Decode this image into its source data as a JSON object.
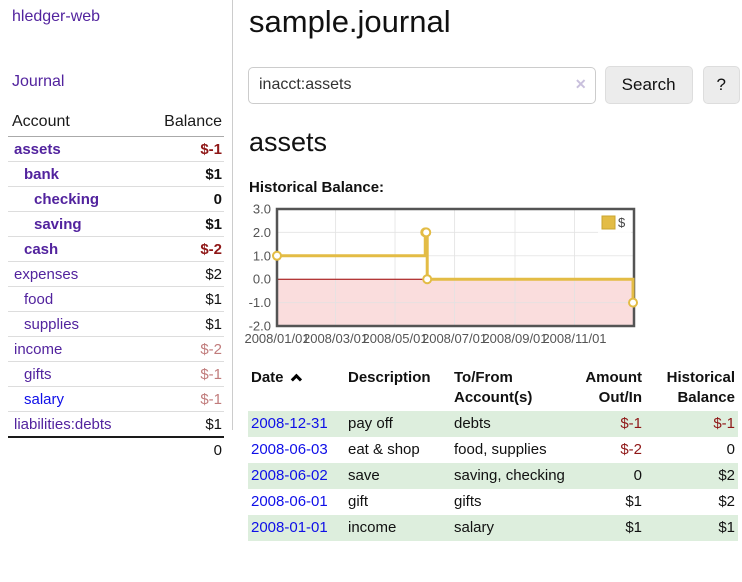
{
  "colors": {
    "purple": "#52239e",
    "blue": "#0f0fe8",
    "negative": "#8f1717",
    "negative_faded": "#c17c7c",
    "stripe_green": "#ddeedd",
    "chart_gold": "#e3bc45",
    "chart_pink": "#fadddd",
    "chart_border": "#545454",
    "chart_zero_line": "#a00000",
    "chart_grid": "#e2e2e2"
  },
  "app": {
    "title": "hledger-web"
  },
  "nav": {
    "journal_label": "Journal"
  },
  "sidebar": {
    "columns": {
      "account": "Account",
      "balance": "Balance"
    },
    "accounts": [
      {
        "name": "assets",
        "depth": 1,
        "bold": true,
        "name_style": "purple",
        "balance": "$-1",
        "balance_style": "neg"
      },
      {
        "name": "bank",
        "depth": 2,
        "bold": true,
        "name_style": "purple",
        "balance": "$1",
        "balance_style": "pos"
      },
      {
        "name": "checking",
        "depth": 3,
        "bold": true,
        "name_style": "purple",
        "balance": "0",
        "balance_style": "pos"
      },
      {
        "name": "saving",
        "depth": 3,
        "bold": true,
        "name_style": "purple",
        "balance": "$1",
        "balance_style": "pos"
      },
      {
        "name": "cash",
        "depth": 2,
        "bold": true,
        "name_style": "purple",
        "balance": "$-2",
        "balance_style": "neg"
      },
      {
        "name": "expenses",
        "depth": 1,
        "bold": false,
        "name_style": "purple",
        "balance": "$2",
        "balance_style": "pos"
      },
      {
        "name": "food",
        "depth": 2,
        "bold": false,
        "name_style": "purple",
        "balance": "$1",
        "balance_style": "pos"
      },
      {
        "name": "supplies",
        "depth": 2,
        "bold": false,
        "name_style": "purple",
        "balance": "$1",
        "balance_style": "pos"
      },
      {
        "name": "income",
        "depth": 1,
        "bold": false,
        "name_style": "purple",
        "balance": "$-2",
        "balance_style": "neg-faded"
      },
      {
        "name": "gifts",
        "depth": 2,
        "bold": false,
        "name_style": "purple",
        "balance": "$-1",
        "balance_style": "neg-faded"
      },
      {
        "name": "salary",
        "depth": 2,
        "bold": false,
        "name_style": "blue",
        "balance": "$-1",
        "balance_style": "neg-faded"
      },
      {
        "name": "liabilities:debts",
        "depth": 1,
        "bold": false,
        "name_style": "purple",
        "balance": "$1",
        "balance_style": "pos"
      }
    ],
    "total": "0"
  },
  "header": {
    "title": "sample.journal"
  },
  "search": {
    "value": "inacct:assets",
    "clear_icon": "✕",
    "search_button": "Search",
    "help_button": "?"
  },
  "content": {
    "account_heading": "assets",
    "chart_label": "Historical Balance:"
  },
  "chart_data": {
    "type": "line",
    "step": true,
    "title": "Historical Balance:",
    "legend_position": "top-right",
    "grid": true,
    "ylim": [
      -2,
      3
    ],
    "y_ticks": [
      3.0,
      2.0,
      1.0,
      0.0,
      -1.0,
      -2.0
    ],
    "xlim_days": [
      0,
      366
    ],
    "x_ticks": [
      {
        "day": 0,
        "label": "2008/01/01"
      },
      {
        "day": 60,
        "label": "2008/03/01"
      },
      {
        "day": 121,
        "label": "2008/05/01"
      },
      {
        "day": 182,
        "label": "2008/07/01"
      },
      {
        "day": 244,
        "label": "2008/09/01"
      },
      {
        "day": 305,
        "label": "2008/11/01"
      }
    ],
    "series": [
      {
        "name": "$",
        "dates": [
          "2008-01-01",
          "2008-06-01",
          "2008-06-02",
          "2008-06-03",
          "2008-12-31"
        ],
        "x_days": [
          0,
          152,
          153,
          154,
          365
        ],
        "values": [
          1,
          2,
          2,
          0,
          -1
        ]
      }
    ]
  },
  "register": {
    "headers": [
      "Date",
      "Description",
      "To/From Account(s)",
      "Amount Out/In",
      "Historical Balance"
    ],
    "sort_icon": "chevron-up",
    "rows": [
      {
        "date": "2008-12-31",
        "description": "pay off",
        "accounts": "debts",
        "amount": "$-1",
        "amount_neg": true,
        "balance": "$-1",
        "balance_neg": true
      },
      {
        "date": "2008-06-03",
        "description": "eat & shop",
        "accounts": "food, supplies",
        "amount": "$-2",
        "amount_neg": true,
        "balance": "0",
        "balance_neg": false
      },
      {
        "date": "2008-06-02",
        "description": "save",
        "accounts": "saving, checking",
        "amount": "0",
        "amount_neg": false,
        "balance": "$2",
        "balance_neg": false
      },
      {
        "date": "2008-06-01",
        "description": "gift",
        "accounts": "gifts",
        "amount": "$1",
        "amount_neg": false,
        "balance": "$2",
        "balance_neg": false
      },
      {
        "date": "2008-01-01",
        "description": "income",
        "accounts": "salary",
        "amount": "$1",
        "amount_neg": false,
        "balance": "$1",
        "balance_neg": false
      }
    ]
  }
}
